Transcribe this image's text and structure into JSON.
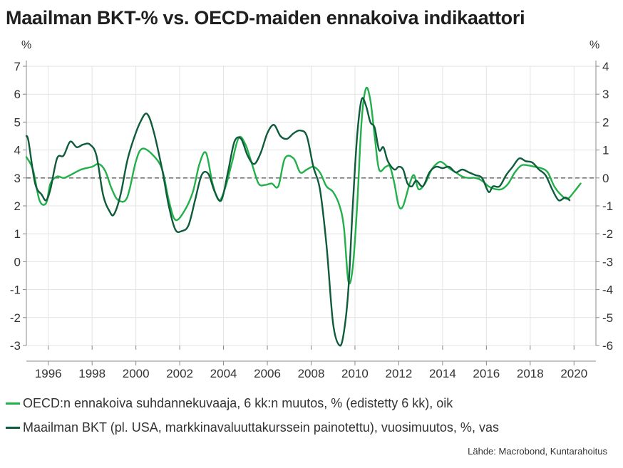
{
  "title": "Maailman BKT-% vs. OECD-maiden ennakoiva indikaattori",
  "source": "Lähde: Macrobond, Kuntarahoitus",
  "chart_data": {
    "type": "line",
    "left_axis": {
      "unit": "%",
      "ylim": [
        -3,
        7
      ],
      "ticks": [
        "7",
        "6",
        "5",
        "4",
        "3",
        "2",
        "1",
        "0",
        "-1",
        "-2",
        "-3"
      ]
    },
    "right_axis": {
      "unit": "%",
      "ylim": [
        -6,
        4
      ],
      "ticks": [
        "4",
        "3",
        "2",
        "1",
        "0",
        "-1",
        "-2",
        "-3",
        "-4",
        "-5",
        "-6"
      ]
    },
    "x_ticks": [
      "1996",
      "1998",
      "2000",
      "2002",
      "2004",
      "2006",
      "2008",
      "2010",
      "2012",
      "2014",
      "2016",
      "2018",
      "2020"
    ],
    "xlim": [
      1995,
      2021
    ],
    "reference_line": {
      "axis": "left",
      "value": 3,
      "style": "dashed"
    },
    "grid": true,
    "series": [
      {
        "name": "OECD:n ennakoiva suhdannekuvaaja, 6 kk:n muutos, % (edistetty 6 kk), oik",
        "axis": "right",
        "color": "#22b04b",
        "x": [
          1995.0,
          1995.3,
          1995.6,
          1995.9,
          1996.1,
          1996.4,
          1996.7,
          1997.0,
          1997.5,
          1998.0,
          1998.3,
          1998.6,
          1998.9,
          1999.2,
          1999.6,
          2000.0,
          2000.3,
          2000.8,
          2001.2,
          2001.5,
          2001.8,
          2002.2,
          2002.6,
          2002.9,
          2003.2,
          2003.5,
          2003.8,
          2004.1,
          2004.4,
          2004.7,
          2005.0,
          2005.3,
          2005.6,
          2005.9,
          2006.2,
          2006.5,
          2006.8,
          2007.2,
          2007.5,
          2007.8,
          2008.1,
          2008.4,
          2008.7,
          2009.0,
          2009.3,
          2009.5,
          2009.7,
          2009.9,
          2010.1,
          2010.3,
          2010.5,
          2010.7,
          2010.9,
          2011.1,
          2011.4,
          2011.6,
          2011.8,
          2012.0,
          2012.2,
          2012.5,
          2012.7,
          2012.9,
          2013.2,
          2013.5,
          2013.8,
          2014.0,
          2014.3,
          2014.6,
          2014.9,
          2015.2,
          2015.5,
          2015.8,
          2016.1,
          2016.4,
          2016.7,
          2017.0,
          2017.3,
          2017.6,
          2017.9,
          2018.2,
          2018.5,
          2018.8,
          2019.1,
          2019.4,
          2019.7,
          2020.0,
          2020.3
        ],
        "values": [
          0.75,
          0.3,
          -0.8,
          -0.9,
          -0.2,
          0.05,
          0.0,
          0.1,
          0.3,
          0.4,
          0.5,
          0.25,
          -0.4,
          -0.8,
          -0.7,
          0.6,
          1.05,
          0.8,
          0.3,
          -0.8,
          -1.5,
          -1.2,
          -0.5,
          0.5,
          0.9,
          -0.2,
          -0.8,
          -0.3,
          0.6,
          1.45,
          1.2,
          0.5,
          -0.2,
          -0.25,
          -0.2,
          -0.3,
          0.7,
          0.7,
          0.2,
          0.3,
          0.4,
          0.2,
          -0.3,
          -0.5,
          -1.0,
          -1.8,
          -3.7,
          -3.2,
          -1.0,
          2.0,
          3.2,
          2.8,
          1.5,
          0.3,
          0.4,
          0.4,
          -0.2,
          -1.0,
          -1.0,
          -0.2,
          0.1,
          -0.4,
          -0.2,
          0.3,
          0.55,
          0.55,
          0.35,
          0.2,
          0.05,
          0.0,
          0.0,
          -0.1,
          -0.3,
          -0.4,
          -0.4,
          -0.2,
          0.2,
          0.45,
          0.45,
          0.4,
          0.35,
          0.2,
          -0.3,
          -0.6,
          -0.75,
          -0.5,
          -0.2
        ]
      },
      {
        "name": "Maailman BKT (pl. USA, markkinavaluuttakurssein painotettu), vuosimuutos, %, vas",
        "axis": "left",
        "color": "#0f5c3c",
        "x": [
          1995.0,
          1995.1,
          1995.4,
          1995.7,
          1995.9,
          1996.1,
          1996.4,
          1996.7,
          1997.0,
          1997.3,
          1997.6,
          1997.9,
          1998.2,
          1998.5,
          1998.8,
          1999.0,
          1999.3,
          1999.6,
          1999.9,
          2000.2,
          2000.5,
          2000.8,
          2001.2,
          2001.5,
          2001.8,
          2002.1,
          2002.4,
          2002.7,
          2003.0,
          2003.3,
          2003.6,
          2003.9,
          2004.2,
          2004.5,
          2004.8,
          2005.1,
          2005.4,
          2005.7,
          2006.0,
          2006.3,
          2006.6,
          2006.9,
          2007.2,
          2007.5,
          2007.8,
          2008.1,
          2008.4,
          2008.7,
          2009.0,
          2009.3,
          2009.5,
          2009.7,
          2009.9,
          2010.1,
          2010.3,
          2010.5,
          2010.7,
          2010.9,
          2011.1,
          2011.3,
          2011.5,
          2011.8,
          2012.0,
          2012.2,
          2012.4,
          2012.6,
          2012.8,
          2013.1,
          2013.4,
          2013.7,
          2014.0,
          2014.3,
          2014.6,
          2014.9,
          2015.2,
          2015.5,
          2015.8,
          2016.1,
          2016.3,
          2016.6,
          2016.9,
          2017.2,
          2017.5,
          2017.8,
          2018.1,
          2018.4,
          2018.7,
          2019.0,
          2019.3,
          2019.6,
          2019.8
        ],
        "values": [
          4.5,
          4.3,
          2.8,
          2.4,
          2.2,
          2.6,
          3.7,
          3.8,
          4.3,
          4.1,
          4.2,
          4.2,
          3.8,
          2.4,
          1.8,
          1.7,
          2.4,
          3.6,
          4.4,
          5.0,
          5.3,
          4.7,
          3.3,
          2.0,
          1.15,
          1.1,
          1.3,
          2.2,
          3.1,
          3.15,
          2.5,
          2.2,
          3.2,
          4.3,
          4.4,
          3.8,
          3.5,
          3.9,
          4.6,
          4.9,
          4.5,
          4.4,
          4.6,
          4.7,
          4.5,
          3.4,
          2.6,
          0.6,
          -2.2,
          -3.0,
          -2.5,
          -1.0,
          2.0,
          4.5,
          5.8,
          5.6,
          5.0,
          4.8,
          4.0,
          4.1,
          3.6,
          3.3,
          3.4,
          3.3,
          2.8,
          2.7,
          2.9,
          2.7,
          3.2,
          3.4,
          3.35,
          3.4,
          3.2,
          3.3,
          3.2,
          3.1,
          3.0,
          2.5,
          2.7,
          2.7,
          3.1,
          3.4,
          3.7,
          3.6,
          3.55,
          3.3,
          3.1,
          2.6,
          2.2,
          2.3,
          2.2
        ]
      }
    ]
  }
}
